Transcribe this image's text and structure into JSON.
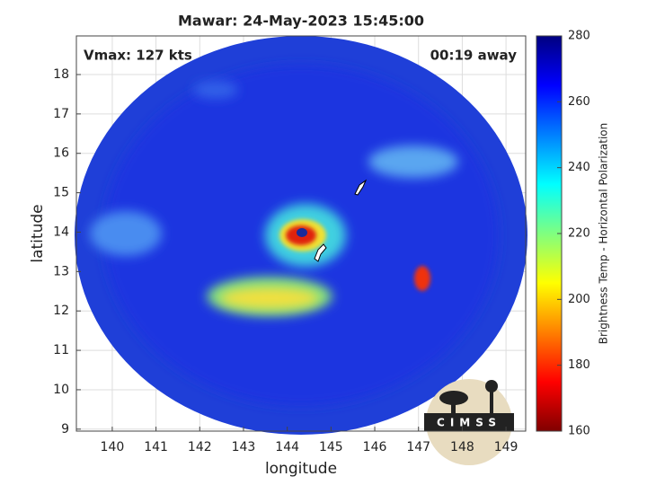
{
  "chart_data": {
    "type": "map",
    "title": "Mawar: 24-May-2023 15:45:00",
    "annotations": [
      "Vmax: 127 kts",
      "00:19 away"
    ],
    "xlabel": "longitude",
    "ylabel": "latitude",
    "xlim": [
      139.18,
      149.45
    ],
    "ylim": [
      8.95,
      18.98
    ],
    "xticks": [
      140,
      141,
      142,
      143,
      144,
      145,
      146,
      147,
      148,
      149
    ],
    "yticks": [
      9,
      10,
      11,
      12,
      13,
      14,
      15,
      16,
      17,
      18
    ],
    "grid": true,
    "colorbar": {
      "label": "Brightness Temp - Horizontal Polarization",
      "lim": [
        160,
        280
      ],
      "ticks": [
        160,
        180,
        200,
        220,
        240,
        260,
        280
      ]
    },
    "logo": "CIMSS"
  }
}
